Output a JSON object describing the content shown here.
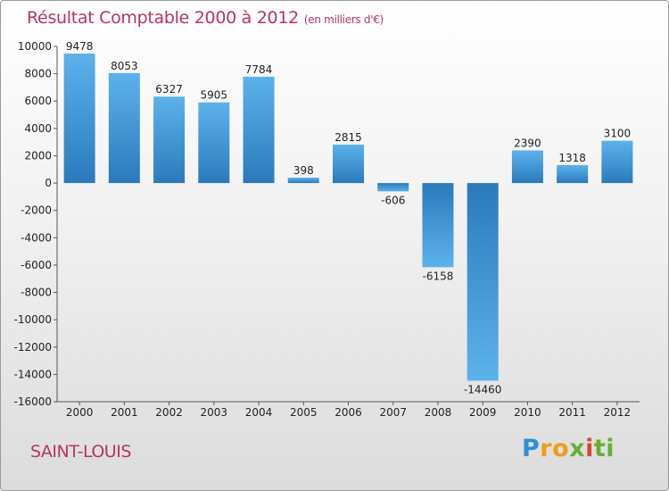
{
  "header": {
    "title": "Résultat Comptable 2000 à 2012",
    "subtitle": "(en milliers d'€)"
  },
  "footer": {
    "city": "SAINT-LOUIS",
    "logo_text": "Proxiti"
  },
  "colors": {
    "title": "#b5365f",
    "bar_light": "#5bb0ea",
    "bar_dark": "#2d7fc0"
  },
  "chart_data": {
    "type": "bar",
    "categories": [
      "2000",
      "2001",
      "2002",
      "2003",
      "2004",
      "2005",
      "2006",
      "2007",
      "2008",
      "2009",
      "2010",
      "2011",
      "2012"
    ],
    "values": [
      9478,
      8053,
      6327,
      5905,
      7784,
      398,
      2815,
      -606,
      -6158,
      -14460,
      2390,
      1318,
      3100
    ],
    "ylim": [
      -16000,
      10000
    ],
    "yticks": [
      10000,
      8000,
      6000,
      4000,
      2000,
      0,
      -2000,
      -4000,
      -6000,
      -8000,
      -10000,
      -12000,
      -14000,
      -16000
    ],
    "grid": false,
    "legend": "none"
  }
}
